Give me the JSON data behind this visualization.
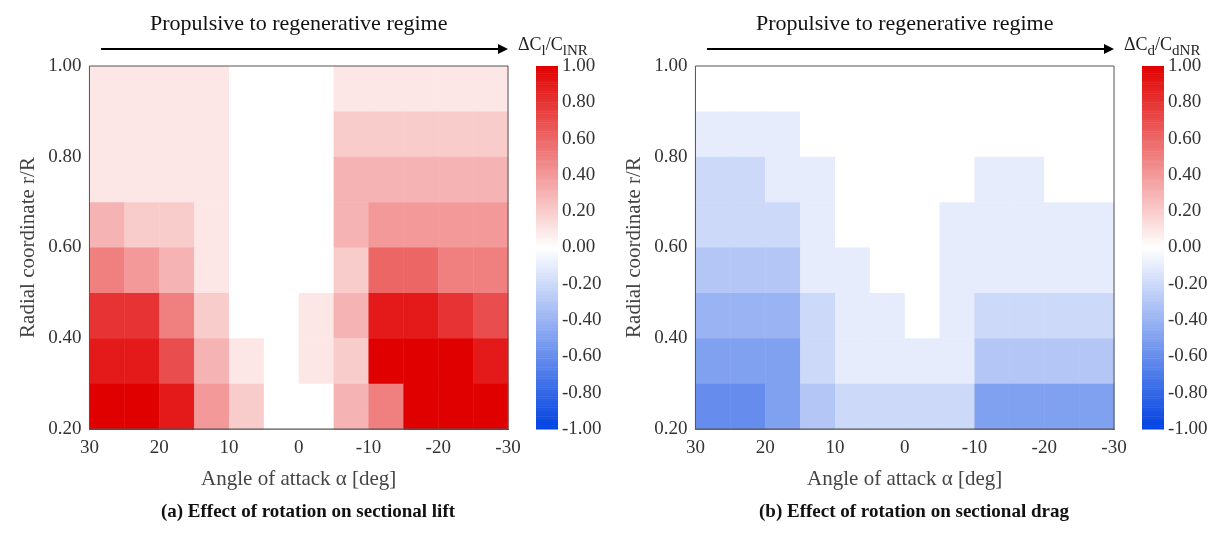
{
  "chart_data": [
    {
      "type": "heatmap",
      "title": "(a) Effect of rotation on sectional lift",
      "annotations": [
        "Propulsive to regenerative regime"
      ],
      "xlabel": "Angle of attack α [deg]",
      "ylabel": "Radial coordinate r/R",
      "clabel": "ΔC$_{l}$/C$_{lNR}$",
      "x": [
        27.5,
        22.5,
        17.5,
        12.5,
        7.5,
        2.5,
        -2.5,
        -7.5,
        -12.5,
        -17.5,
        -22.5,
        -27.5
      ],
      "y": [
        0.95,
        0.85,
        0.75,
        0.65,
        0.55,
        0.45,
        0.35,
        0.25
      ],
      "cells": [
        [
          0.1,
          0.1,
          0.1,
          0.1,
          0,
          0,
          0,
          0.1,
          0.1,
          0.1,
          0.1,
          0.1
        ],
        [
          0.1,
          0.1,
          0.1,
          0.1,
          0,
          0,
          0,
          0.2,
          0.2,
          0.2,
          0.2,
          0.2
        ],
        [
          0.1,
          0.1,
          0.1,
          0.1,
          0,
          0,
          0,
          0.3,
          0.3,
          0.3,
          0.3,
          0.3
        ],
        [
          0.3,
          0.2,
          0.2,
          0.1,
          0,
          0,
          0,
          0.3,
          0.4,
          0.4,
          0.4,
          0.4
        ],
        [
          0.5,
          0.4,
          0.3,
          0.1,
          0,
          0,
          0,
          0.2,
          0.6,
          0.6,
          0.5,
          0.5
        ],
        [
          0.8,
          0.8,
          0.5,
          0.2,
          0,
          0,
          0.1,
          0.3,
          0.9,
          0.9,
          0.8,
          0.7
        ],
        [
          0.9,
          0.9,
          0.7,
          0.3,
          0.1,
          0,
          0.1,
          0.2,
          1,
          1,
          1,
          0.9
        ],
        [
          1,
          1,
          0.9,
          0.4,
          0.2,
          0,
          0,
          0.3,
          0.5,
          1,
          1,
          1
        ]
      ],
      "xlim": [
        30,
        -30
      ],
      "xticks": [
        30,
        20,
        10,
        0,
        -10,
        -20,
        -30
      ],
      "ylim": [
        0.2,
        1
      ],
      "yticks": [
        {
          "value": 0.2,
          "label": "0.20"
        },
        {
          "value": 0.4,
          "label": "0.40"
        },
        {
          "value": 0.6,
          "label": "0.60"
        },
        {
          "value": 0.8,
          "label": "0.80"
        },
        {
          "value": 1,
          "label": "1.00"
        }
      ],
      "clim": [
        -1,
        1
      ],
      "cticks": [
        {
          "value": -1,
          "label": "-1.00"
        },
        {
          "value": -0.8,
          "label": "-0.80"
        },
        {
          "value": -0.6,
          "label": "-0.60"
        },
        {
          "value": -0.4,
          "label": "-0.40"
        },
        {
          "value": -0.2,
          "label": "-0.20"
        },
        {
          "value": 0,
          "label": "0.00"
        },
        {
          "value": 0.2,
          "label": "0.20"
        },
        {
          "value": 0.4,
          "label": "0.40"
        },
        {
          "value": 0.6,
          "label": "0.60"
        },
        {
          "value": 0.8,
          "label": "0.80"
        },
        {
          "value": 1,
          "label": "1.00"
        }
      ]
    },
    {
      "type": "heatmap",
      "title": "(b) Effect of rotation on sectional drag",
      "annotations": [
        "Propulsive to regenerative regime"
      ],
      "xlabel": "Angle of attack α [deg]",
      "ylabel": "Radial coordinate r/R",
      "clabel": "ΔC$_{d}$/C$_{dNR}$",
      "x": [
        27.5,
        22.5,
        17.5,
        12.5,
        7.5,
        2.5,
        -2.5,
        -7.5,
        -12.5,
        -17.5,
        -22.5,
        -27.5
      ],
      "y": [
        0.95,
        0.85,
        0.75,
        0.65,
        0.55,
        0.45,
        0.35,
        0.25
      ],
      "cells": [
        [
          0,
          0,
          0,
          0,
          0,
          0,
          0,
          0,
          0,
          0,
          0,
          0
        ],
        [
          -0.1,
          -0.1,
          -0.1,
          0,
          0,
          0,
          0,
          0,
          0,
          0,
          0,
          0
        ],
        [
          -0.2,
          -0.2,
          -0.1,
          -0.1,
          0,
          0,
          0,
          0,
          -0.1,
          -0.1,
          0,
          0
        ],
        [
          -0.2,
          -0.2,
          -0.2,
          -0.1,
          0,
          0,
          0,
          -0.1,
          -0.1,
          -0.1,
          -0.1,
          -0.1
        ],
        [
          -0.3,
          -0.3,
          -0.3,
          -0.1,
          -0.1,
          0,
          0,
          -0.1,
          -0.1,
          -0.1,
          -0.1,
          -0.1
        ],
        [
          -0.4,
          -0.4,
          -0.4,
          -0.2,
          -0.1,
          -0.1,
          0,
          -0.1,
          -0.2,
          -0.2,
          -0.2,
          -0.2
        ],
        [
          -0.5,
          -0.5,
          -0.5,
          -0.2,
          -0.1,
          -0.1,
          -0.1,
          -0.1,
          -0.3,
          -0.3,
          -0.3,
          -0.3
        ],
        [
          -0.6,
          -0.6,
          -0.5,
          -0.3,
          -0.2,
          -0.2,
          -0.2,
          -0.2,
          -0.5,
          -0.5,
          -0.5,
          -0.5
        ]
      ],
      "xlim": [
        30,
        -30
      ],
      "xticks": [
        30,
        20,
        10,
        0,
        -10,
        -20,
        -30
      ],
      "ylim": [
        0.2,
        1
      ],
      "yticks": [
        {
          "value": 0.2,
          "label": "0.20"
        },
        {
          "value": 0.4,
          "label": "0.40"
        },
        {
          "value": 0.6,
          "label": "0.60"
        },
        {
          "value": 0.8,
          "label": "0.80"
        },
        {
          "value": 1,
          "label": "1.00"
        }
      ],
      "clim": [
        -1,
        1
      ],
      "cticks": [
        {
          "value": -1,
          "label": "-1.00"
        },
        {
          "value": -0.8,
          "label": "-0.80"
        },
        {
          "value": -0.6,
          "label": "-0.60"
        },
        {
          "value": -0.4,
          "label": "-0.40"
        },
        {
          "value": -0.2,
          "label": "-0.20"
        },
        {
          "value": 0,
          "label": "0.00"
        },
        {
          "value": 0.2,
          "label": "0.20"
        },
        {
          "value": 0.4,
          "label": "0.40"
        },
        {
          "value": 0.6,
          "label": "0.60"
        },
        {
          "value": 0.8,
          "label": "0.80"
        },
        {
          "value": 1,
          "label": "1.00"
        }
      ]
    }
  ]
}
